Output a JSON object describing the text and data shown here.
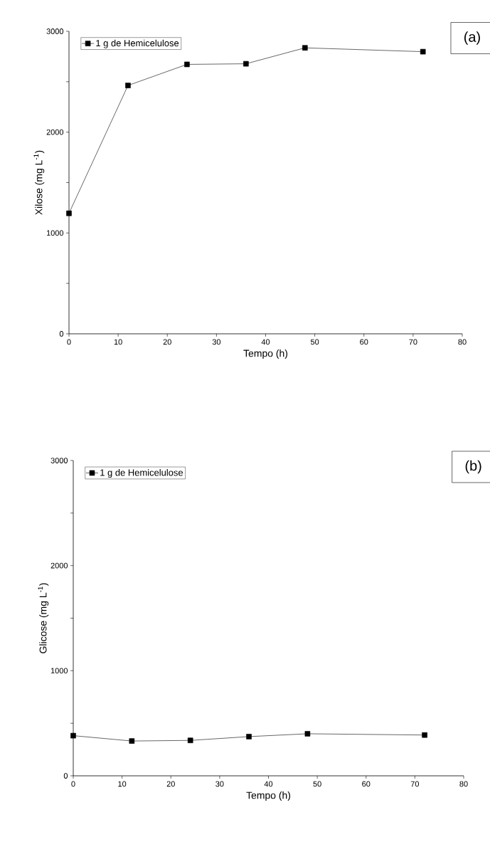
{
  "chart_data": [
    {
      "type": "line",
      "xlabel": "Tempo (h)",
      "ylabel": "Xilose (mg L$^{-1}$)",
      "annotations": [
        "(a)"
      ],
      "x": [
        0,
        12,
        24,
        36,
        48,
        72
      ],
      "series": [
        {
          "name": "1 g de Hemicelulose",
          "color": "#000000",
          "values": [
            1195,
            2463,
            2672,
            2678,
            2836,
            2798
          ]
        }
      ],
      "xlim": [
        0,
        80
      ],
      "xticks": [
        0,
        10,
        20,
        30,
        40,
        50,
        60,
        70,
        80
      ],
      "ylim": [
        0,
        3000
      ],
      "yticks": [
        0,
        {
          "value": 500,
          "label": null
        },
        1000,
        {
          "value": 1500,
          "label": null
        },
        2000,
        {
          "value": 2500,
          "label": null
        },
        3000
      ],
      "legend": "top left",
      "marker": "square",
      "line_style": "solid",
      "grid": false
    },
    {
      "type": "line",
      "xlabel": "Tempo (h)",
      "ylabel": "Glicose (mg L$^{-1}$)",
      "annotations": [
        "(b)"
      ],
      "x": [
        0,
        12,
        24,
        36,
        48,
        72
      ],
      "series": [
        {
          "name": "1 g de Hemicelulose",
          "color": "#000000",
          "values": [
            382,
            331,
            337,
            373,
            400,
            388
          ]
        }
      ],
      "xlim": [
        0,
        80
      ],
      "xticks": [
        0,
        10,
        20,
        30,
        40,
        50,
        60,
        70,
        80
      ],
      "ylim": [
        0,
        3000
      ],
      "yticks": [
        0,
        {
          "value": 500,
          "label": null
        },
        1000,
        {
          "value": 1500,
          "label": null
        },
        2000,
        {
          "value": 2500,
          "label": null
        },
        3000
      ],
      "legend": "top left",
      "marker": "square",
      "line_style": "solid",
      "grid": false
    }
  ]
}
